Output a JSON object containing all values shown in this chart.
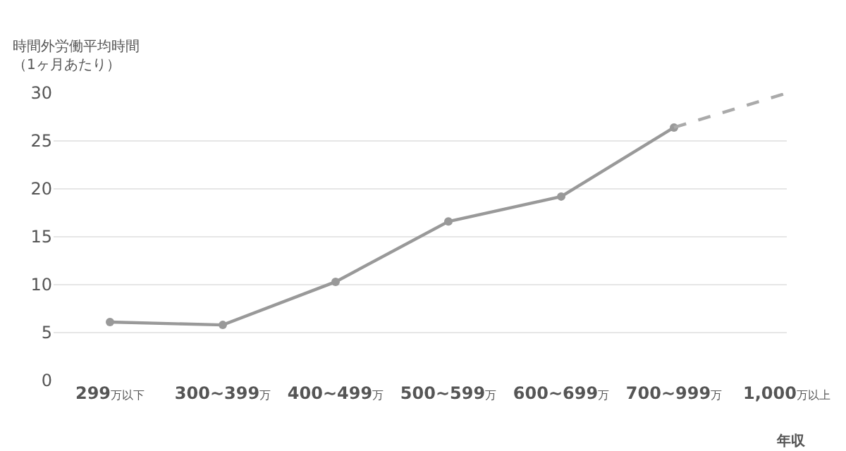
{
  "chart_data": {
    "type": "line",
    "ylabel": "時間外労働平均時間（1ヶ月あたり）",
    "xlabel": "年収",
    "categories": [
      "299万以下",
      "300~399万",
      "400~499万",
      "500~599万",
      "600~699万",
      "700~999万",
      "1,000万以上"
    ],
    "series": [
      {
        "color": "#999999",
        "values": [
          6.1,
          5.8,
          10.3,
          16.6,
          19.2,
          26.4,
          null
        ],
        "marker": "circle",
        "line_style": "solid"
      },
      {
        "color": "#aaaaaa",
        "values": [
          null,
          null,
          null,
          null,
          null,
          26.4,
          30
        ],
        "marker": "none",
        "line_style": "dashed"
      }
    ],
    "ylim": [
      0,
      30
    ],
    "yticks": [
      0,
      5,
      10,
      15,
      20,
      25,
      30
    ],
    "grid": "y",
    "legend": false
  }
}
